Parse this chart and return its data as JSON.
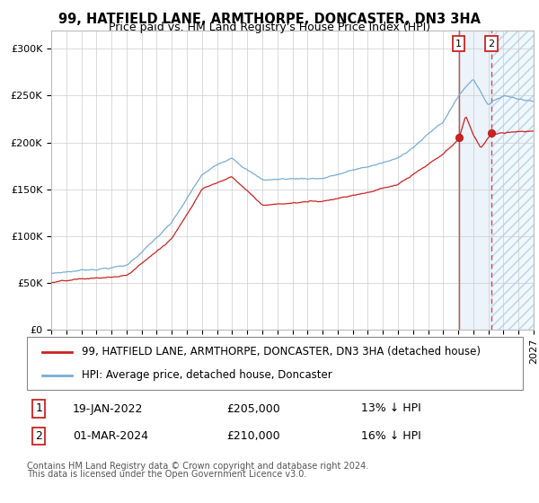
{
  "title": "99, HATFIELD LANE, ARMTHORPE, DONCASTER, DN3 3HA",
  "subtitle": "Price paid vs. HM Land Registry's House Price Index (HPI)",
  "ylim": [
    0,
    320000
  ],
  "yticks": [
    0,
    50000,
    100000,
    150000,
    200000,
    250000,
    300000
  ],
  "ytick_labels": [
    "£0",
    "£50K",
    "£100K",
    "£150K",
    "£200K",
    "£250K",
    "£300K"
  ],
  "hpi_color": "#7aadd4",
  "price_color": "#cc2222",
  "marker_color": "#cc2222",
  "transaction1_date": "19-JAN-2022",
  "transaction1_price": "£205,000",
  "transaction1_label": "13% ↓ HPI",
  "transaction2_date": "01-MAR-2024",
  "transaction2_price": "£210,000",
  "transaction2_label": "16% ↓ HPI",
  "legend1": "99, HATFIELD LANE, ARMTHORPE, DONCASTER, DN3 3HA (detached house)",
  "legend2": "HPI: Average price, detached house, Doncaster",
  "footnote1": "Contains HM Land Registry data © Crown copyright and database right 2024.",
  "footnote2": "This data is licensed under the Open Government Licence v3.0.",
  "grid_color": "#cccccc",
  "title_fontsize": 10.5,
  "subtitle_fontsize": 9,
  "tick_fontsize": 8,
  "legend_fontsize": 8.5,
  "table_fontsize": 9,
  "footnote_fontsize": 7,
  "xmin": 1995.0,
  "xmax": 2027.0
}
